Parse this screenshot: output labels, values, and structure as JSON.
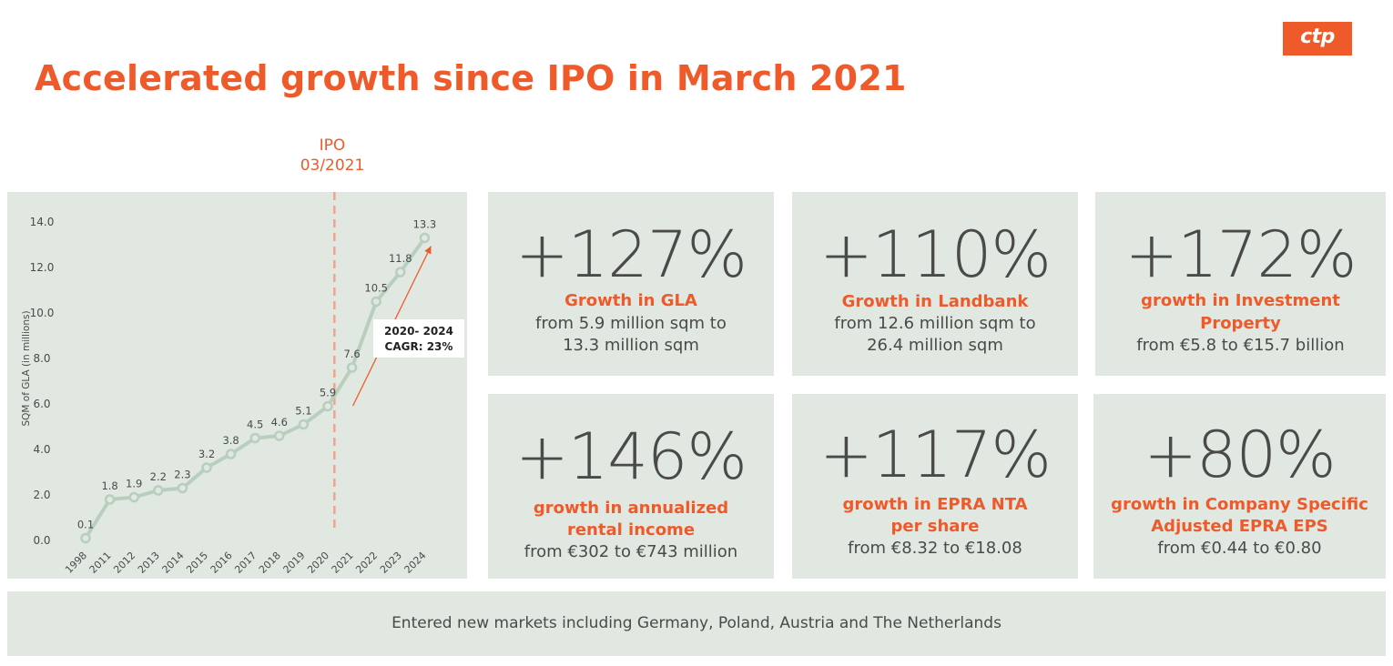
{
  "logo": {
    "text": "ctp"
  },
  "title": "Accelerated growth since IPO in March 2021",
  "ipo_marker": {
    "line1": "IPO",
    "line2": "03/2021"
  },
  "cagr_label": {
    "line1": "2020- 2024",
    "line2": "CAGR: 23%"
  },
  "chart_data": {
    "type": "line",
    "ylabel": "SQM of GLA (in millions)",
    "xlabel": "",
    "ylim": [
      0,
      14
    ],
    "y_ticks": [
      "0.0",
      "2.0",
      "4.0",
      "6.0",
      "8.0",
      "10.0",
      "12.0",
      "14.0"
    ],
    "categories": [
      "1998",
      "2011",
      "2012",
      "2013",
      "2014",
      "2015",
      "2016",
      "2017",
      "2018",
      "2019",
      "2020",
      "2021",
      "2022",
      "2023",
      "2024"
    ],
    "values": [
      0.1,
      1.8,
      1.9,
      2.2,
      2.3,
      3.2,
      3.8,
      4.5,
      4.6,
      5.1,
      5.9,
      7.6,
      10.5,
      11.8,
      13.3
    ],
    "data_labels": [
      "0.1",
      "1.8",
      "1.9",
      "2.2",
      "2.3",
      "3.2",
      "3.8",
      "4.5",
      "4.6",
      "5.1",
      "5.9",
      "7.6",
      "10.5",
      "11.8",
      "13.3"
    ],
    "grid": false,
    "ipo_line_between": [
      "2020",
      "2021"
    ],
    "colors": {
      "line": "#b9cfbd",
      "marker_fill": "#e0e8e1",
      "ipo_line": "#f0a48a",
      "arrow": "#ef5a2a",
      "text": "#4a4a48"
    }
  },
  "cards": [
    {
      "big": "+127%",
      "highlight": [
        "Growth in GLA"
      ],
      "sub": [
        "from 5.9 million sqm to",
        "13.3 million sqm"
      ]
    },
    {
      "big": "+110%",
      "highlight": [
        "Growth in Landbank"
      ],
      "sub": [
        "from 12.6 million sqm to",
        "26.4 million sqm"
      ]
    },
    {
      "big": "+172%",
      "highlight": [
        "growth in Investment",
        "Property"
      ],
      "sub": [
        "from €5.8 to €15.7 billion"
      ]
    },
    {
      "big": "+146%",
      "highlight": [
        "growth in annualized",
        "rental income"
      ],
      "sub": [
        "from €302 to €743 million"
      ]
    },
    {
      "big": "+117%",
      "highlight": [
        "growth in EPRA NTA",
        "per share"
      ],
      "sub": [
        "from €8.32 to €18.08"
      ]
    },
    {
      "big": "+80%",
      "highlight": [
        "growth in Company Specific",
        "Adjusted EPRA EPS"
      ],
      "sub": [
        "from €0.44 to €0.80"
      ]
    }
  ],
  "footer": "Entered new markets including Germany, Poland, Austria and The Netherlands",
  "colors": {
    "accent": "#ef5a2a",
    "panel": "#e0e8e1",
    "text": "#4a4a48"
  }
}
